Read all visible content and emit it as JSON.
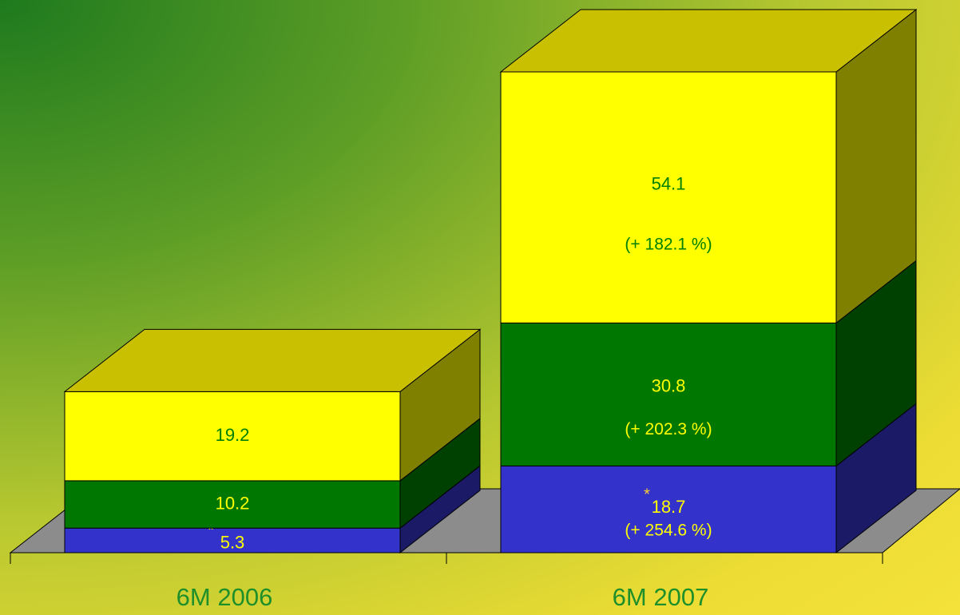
{
  "chart_data": {
    "type": "bar3d_stacked",
    "categories": [
      "6M 2006",
      "6M 2007"
    ],
    "footnote_mark": "*",
    "series": [
      {
        "color": "#3333cc",
        "values": [
          5.3,
          18.7
        ],
        "annotations": [
          null,
          "(+ 254.6 %)"
        ]
      },
      {
        "color": "#007700",
        "values": [
          10.2,
          30.8
        ],
        "annotations": [
          null,
          "(+ 202.3 %)"
        ]
      },
      {
        "color": "#ffff00",
        "values": [
          19.2,
          54.1
        ],
        "annotations": [
          null,
          "(+ 182.1 %)"
        ]
      }
    ]
  }
}
